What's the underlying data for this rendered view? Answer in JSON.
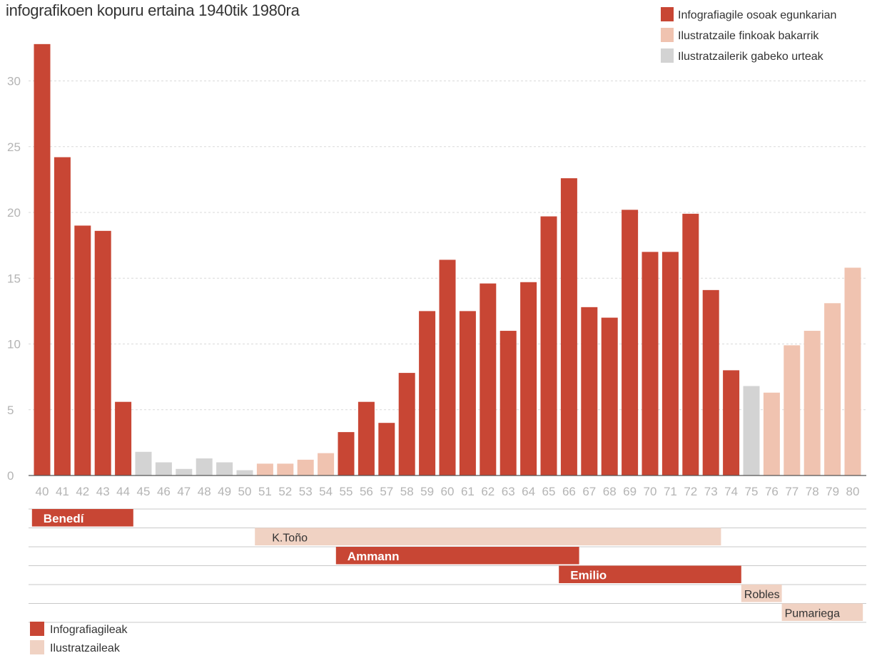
{
  "chart_data": {
    "type": "bar",
    "title": "infografikoen kopuru ertaina 1940tik 1980ra",
    "categories": [
      "40",
      "41",
      "42",
      "43",
      "44",
      "45",
      "46",
      "47",
      "48",
      "49",
      "50",
      "51",
      "52",
      "53",
      "54",
      "55",
      "56",
      "57",
      "58",
      "59",
      "60",
      "61",
      "62",
      "63",
      "64",
      "65",
      "66",
      "67",
      "68",
      "69",
      "70",
      "71",
      "72",
      "73",
      "74",
      "75",
      "76",
      "77",
      "78",
      "79",
      "80"
    ],
    "values": [
      32.8,
      24.2,
      19.0,
      18.6,
      5.6,
      1.8,
      1.0,
      0.5,
      1.3,
      1.0,
      0.4,
      0.9,
      0.9,
      1.2,
      1.7,
      3.3,
      5.6,
      4.0,
      7.8,
      12.5,
      16.4,
      12.5,
      14.6,
      11.0,
      14.7,
      19.7,
      22.6,
      12.8,
      12.0,
      20.2,
      17.0,
      17.0,
      19.9,
      14.1,
      8.0,
      6.8,
      6.3,
      9.9,
      11.0,
      13.1,
      15.8
    ],
    "kinds": [
      "full",
      "full",
      "full",
      "full",
      "full",
      "none",
      "none",
      "none",
      "none",
      "none",
      "none",
      "fixed",
      "fixed",
      "fixed",
      "fixed",
      "full",
      "full",
      "full",
      "full",
      "full",
      "full",
      "full",
      "full",
      "full",
      "full",
      "full",
      "full",
      "full",
      "full",
      "full",
      "full",
      "full",
      "full",
      "full",
      "full",
      "none",
      "fixed",
      "fixed",
      "fixed",
      "fixed",
      "fixed"
    ],
    "yticks": [
      0,
      5,
      10,
      15,
      20,
      25,
      30
    ],
    "ylim": [
      0,
      33
    ],
    "grid": true,
    "legend": {
      "position": "top-right",
      "entries": [
        {
          "kind": "full",
          "label": "Infografiagile osoak egunkarian"
        },
        {
          "kind": "fixed",
          "label": "Ilustratzaile finkoak bakarrik"
        },
        {
          "kind": "none",
          "label": "Ilustratzailerik gabeko urteak"
        }
      ]
    },
    "timeline": [
      {
        "name": "Benedí",
        "role": "infographer",
        "start": "40",
        "end": "44"
      },
      {
        "name": "K.Toño",
        "role": "illustrator",
        "start": "51",
        "end": "73"
      },
      {
        "name": "Ammann",
        "role": "infographer",
        "start": "55",
        "end": "66"
      },
      {
        "name": "Emilio",
        "role": "infographer",
        "start": "66",
        "end": "74"
      },
      {
        "name": "Robles",
        "role": "illustrator",
        "start": "75",
        "end": "76"
      },
      {
        "name": "Pumariega",
        "role": "illustrator",
        "start": "77",
        "end": "80"
      }
    ],
    "bottom_legend": [
      {
        "role": "infographer",
        "label": "Infografiagileak"
      },
      {
        "role": "illustrator",
        "label": "Ilustratzaileak"
      }
    ]
  },
  "colors": {
    "full": "#c84634",
    "fixed": "#f0c3b0",
    "none": "#d3d3d3",
    "infographer": "#c84634",
    "illustrator": "#f0d2c3",
    "grid": "#d9d9d9",
    "axis": "#555555"
  }
}
